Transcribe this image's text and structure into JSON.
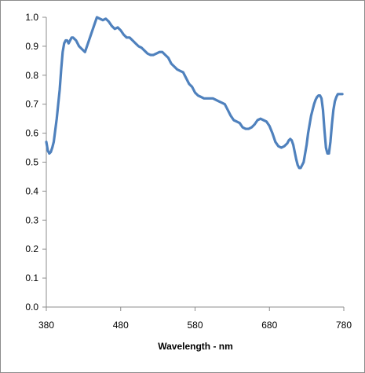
{
  "chart_data": {
    "type": "line",
    "title": "",
    "xlabel": "Wavelength - nm",
    "ylabel": "",
    "xlim": [
      380,
      780
    ],
    "ylim": [
      0.0,
      1.0
    ],
    "x_ticks": [
      380,
      480,
      580,
      680,
      780
    ],
    "x_tick_labels": [
      "380",
      "480",
      "580",
      "680",
      "780"
    ],
    "y_ticks": [
      0.0,
      0.1,
      0.2,
      0.3,
      0.4,
      0.5,
      0.6,
      0.7,
      0.8,
      0.9,
      1.0
    ],
    "y_tick_labels": [
      "0.0",
      "0.1",
      "0.2",
      "0.3",
      "0.4",
      "0.5",
      "0.6",
      "0.7",
      "0.8",
      "0.9",
      "1.0"
    ],
    "grid": false,
    "legend": "none",
    "series": [
      {
        "color": "#4f81bd",
        "x": [
          380,
          382,
          384,
          386,
          388,
          390,
          392,
          394,
          396,
          398,
          400,
          402,
          404,
          406,
          408,
          410,
          412,
          414,
          416,
          418,
          420,
          424,
          428,
          432,
          436,
          440,
          444,
          448,
          452,
          456,
          460,
          464,
          468,
          472,
          476,
          480,
          484,
          488,
          492,
          496,
          500,
          504,
          508,
          512,
          516,
          520,
          524,
          528,
          532,
          536,
          540,
          544,
          548,
          552,
          556,
          560,
          564,
          568,
          572,
          576,
          580,
          584,
          588,
          592,
          596,
          600,
          604,
          608,
          612,
          616,
          620,
          624,
          628,
          632,
          636,
          640,
          644,
          648,
          652,
          656,
          660,
          664,
          668,
          672,
          676,
          680,
          684,
          688,
          692,
          696,
          700,
          704,
          706,
          708,
          710,
          712,
          714,
          716,
          718,
          720,
          722,
          724,
          726,
          728,
          730,
          732,
          734,
          736,
          738,
          740,
          742,
          744,
          746,
          748,
          750,
          752,
          754,
          756,
          758,
          760,
          762,
          764,
          766,
          768,
          770,
          772,
          774,
          776,
          778
        ],
        "y": [
          0.57,
          0.54,
          0.53,
          0.535,
          0.55,
          0.57,
          0.61,
          0.65,
          0.7,
          0.75,
          0.82,
          0.88,
          0.91,
          0.92,
          0.92,
          0.91,
          0.92,
          0.93,
          0.93,
          0.925,
          0.92,
          0.9,
          0.89,
          0.88,
          0.91,
          0.94,
          0.97,
          1.0,
          0.995,
          0.99,
          0.995,
          0.985,
          0.97,
          0.96,
          0.965,
          0.955,
          0.94,
          0.93,
          0.93,
          0.92,
          0.91,
          0.9,
          0.895,
          0.885,
          0.875,
          0.87,
          0.87,
          0.875,
          0.88,
          0.88,
          0.87,
          0.86,
          0.84,
          0.83,
          0.82,
          0.815,
          0.81,
          0.79,
          0.77,
          0.76,
          0.74,
          0.73,
          0.725,
          0.72,
          0.72,
          0.72,
          0.72,
          0.715,
          0.71,
          0.705,
          0.7,
          0.68,
          0.66,
          0.645,
          0.64,
          0.635,
          0.62,
          0.615,
          0.615,
          0.62,
          0.63,
          0.645,
          0.65,
          0.645,
          0.64,
          0.625,
          0.6,
          0.57,
          0.555,
          0.55,
          0.555,
          0.565,
          0.575,
          0.58,
          0.575,
          0.56,
          0.535,
          0.51,
          0.49,
          0.48,
          0.48,
          0.49,
          0.5,
          0.53,
          0.56,
          0.6,
          0.63,
          0.66,
          0.68,
          0.7,
          0.715,
          0.725,
          0.73,
          0.73,
          0.72,
          0.68,
          0.61,
          0.55,
          0.53,
          0.53,
          0.57,
          0.63,
          0.68,
          0.71,
          0.725,
          0.735,
          0.735,
          0.735,
          0.735
        ]
      }
    ]
  }
}
